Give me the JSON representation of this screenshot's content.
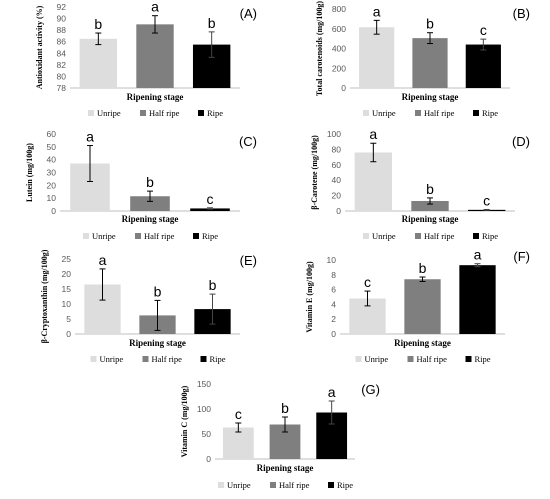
{
  "chart_data": [
    {
      "type": "bar",
      "panel_label": "(A)",
      "xlabel": "Ripening stage",
      "ylabel": "Antioxidant activity (%)",
      "ylim": [
        78,
        92
      ],
      "yticks": [
        78,
        80,
        82,
        84,
        86,
        88,
        90,
        92
      ],
      "categories": [
        "Unripe",
        "Half ripe",
        "Ripe"
      ],
      "values": [
        86.5,
        89.0,
        85.5
      ],
      "errors": [
        1.0,
        1.5,
        2.2
      ],
      "significance": [
        "b",
        "a",
        "b"
      ],
      "legend": [
        "Unripe",
        "Half ripe",
        "Ripe"
      ],
      "colors": [
        "#dddddd",
        "#7f7f7f",
        "#000000"
      ]
    },
    {
      "type": "bar",
      "panel_label": "(B)",
      "xlabel": "Ripening stage",
      "ylabel": "Total carotenoids (mg/100g)",
      "ylim": [
        0,
        800
      ],
      "yticks": [
        0,
        200,
        400,
        600,
        800
      ],
      "categories": [
        "Unripe",
        "Half ripe",
        "Ripe"
      ],
      "values": [
        615,
        505,
        440
      ],
      "errors": [
        70,
        55,
        55
      ],
      "significance": [
        "a",
        "b",
        "c"
      ],
      "legend": [
        "Unripe",
        "Half ripe",
        "Ripe"
      ],
      "colors": [
        "#dddddd",
        "#7f7f7f",
        "#000000"
      ]
    },
    {
      "type": "bar",
      "panel_label": "(C)",
      "xlabel": "Ripening stage",
      "ylabel": "Lutein (mg/100g)",
      "ylim": [
        0,
        60
      ],
      "yticks": [
        0,
        10,
        20,
        30,
        40,
        50,
        60
      ],
      "categories": [
        "Unripe",
        "Half ripe",
        "Ripe"
      ],
      "values": [
        37,
        11.5,
        2
      ],
      "errors": [
        14,
        4,
        0.5
      ],
      "significance": [
        "a",
        "b",
        "c"
      ],
      "legend": [
        "Unripe",
        "Half ripe",
        "Ripe"
      ],
      "colors": [
        "#dddddd",
        "#7f7f7f",
        "#000000"
      ]
    },
    {
      "type": "bar",
      "panel_label": "(D)",
      "xlabel": "Ripening stage",
      "ylabel": "β-Carotene (mg/100g)",
      "ylim": [
        0,
        100
      ],
      "yticks": [
        0,
        20,
        40,
        60,
        80,
        100
      ],
      "categories": [
        "Unripe",
        "Half ripe",
        "Ripe"
      ],
      "values": [
        76,
        13,
        1.5
      ],
      "errors": [
        12,
        4,
        0.5
      ],
      "significance": [
        "a",
        "b",
        "c"
      ],
      "legend": [
        "Unripe",
        "Half ripe",
        "Ripe"
      ],
      "colors": [
        "#dddddd",
        "#7f7f7f",
        "#000000"
      ]
    },
    {
      "type": "bar",
      "panel_label": "(E)",
      "xlabel": "Ripening stage",
      "ylabel": "β-Cryptoxanthin (mg/100g)",
      "ylim": [
        0,
        25
      ],
      "yticks": [
        0,
        5,
        10,
        15,
        20,
        25
      ],
      "categories": [
        "Unripe",
        "Half ripe",
        "Ripe"
      ],
      "values": [
        16.5,
        6.2,
        8.3
      ],
      "errors": [
        5.2,
        5.0,
        5.0
      ],
      "significance": [
        "a",
        "b",
        "b"
      ],
      "legend": [
        "Unripe",
        "Half ripe",
        "Ripe"
      ],
      "colors": [
        "#dddddd",
        "#7f7f7f",
        "#000000"
      ]
    },
    {
      "type": "bar",
      "panel_label": "(F)",
      "xlabel": "Ripening stage",
      "ylabel": "Vitamin E (mg/100g)",
      "ylim": [
        0,
        10
      ],
      "yticks": [
        0,
        2,
        4,
        6,
        8,
        10
      ],
      "categories": [
        "Unripe",
        "Half ripe",
        "Ripe"
      ],
      "values": [
        4.8,
        7.4,
        9.3
      ],
      "errors": [
        1.0,
        0.3,
        0.2
      ],
      "significance": [
        "c",
        "b",
        "a"
      ],
      "legend": [
        "Unripe",
        "Half ripe",
        "Ripe"
      ],
      "colors": [
        "#dddddd",
        "#7f7f7f",
        "#000000"
      ]
    },
    {
      "type": "bar",
      "panel_label": "(G)",
      "xlabel": "Ripening stage",
      "ylabel": "Vitamin C (mg/100g)",
      "ylim": [
        0,
        150
      ],
      "yticks": [
        0,
        50,
        100,
        150
      ],
      "categories": [
        "Unripe",
        "Half ripe",
        "Ripe"
      ],
      "values": [
        63,
        69,
        93
      ],
      "errors": [
        9,
        15,
        23
      ],
      "significance": [
        "c",
        "b",
        "a"
      ],
      "legend": [
        "Unripe",
        "Half ripe",
        "Ripe"
      ],
      "colors": [
        "#dddddd",
        "#7f7f7f",
        "#000000"
      ]
    }
  ]
}
